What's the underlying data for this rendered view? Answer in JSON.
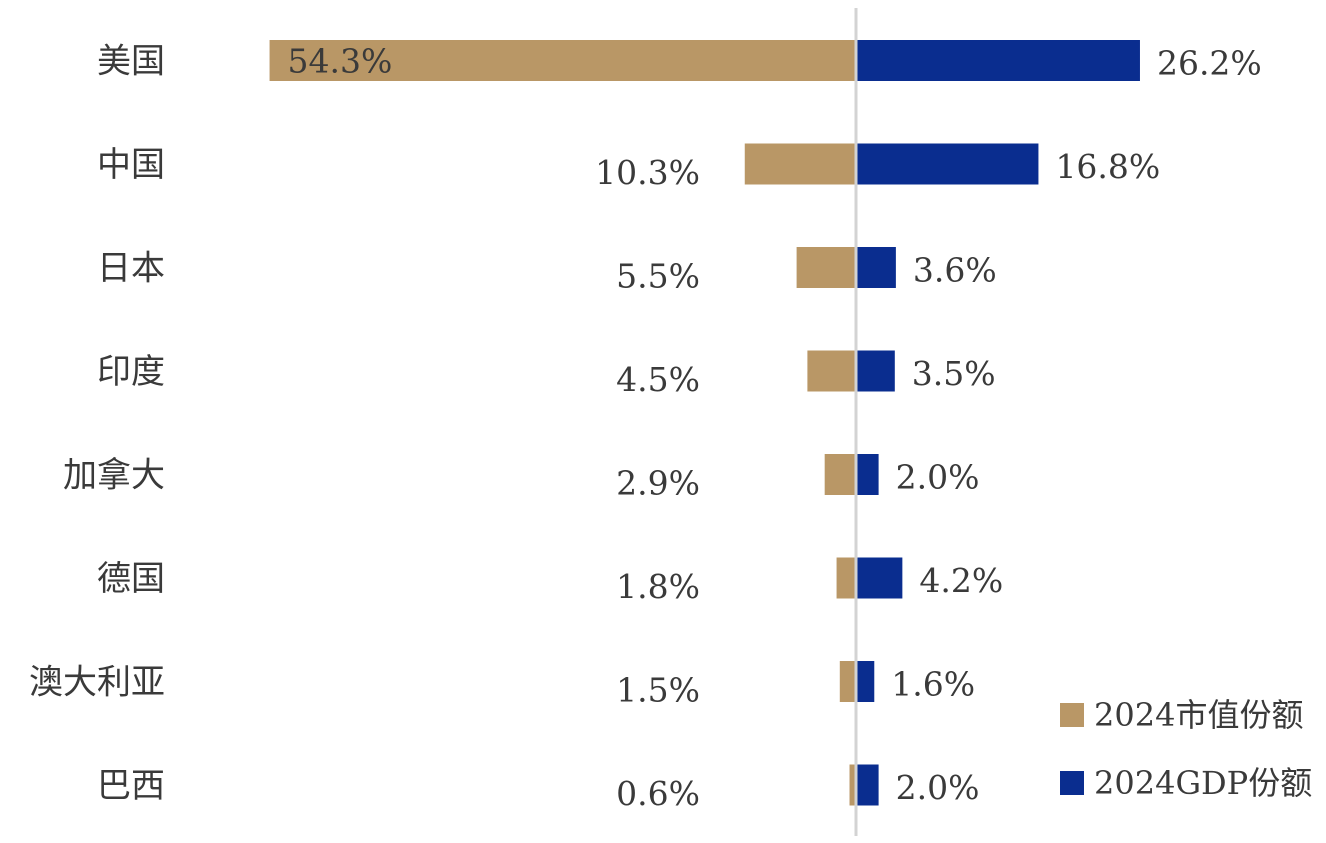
{
  "colors": {
    "market_cap": "#b99766",
    "gdp": "#0a2d8f",
    "axis": "#d3d3d3",
    "text": "#3a3a3a"
  },
  "legend": {
    "market_cap": "2024市值份额",
    "gdp": "2024GDP份额"
  },
  "chart_data": {
    "type": "bar",
    "orientation": "horizontal-diverging",
    "categories": [
      "美国",
      "中国",
      "日本",
      "印度",
      "加拿大",
      "德国",
      "澳大利亚",
      "巴西"
    ],
    "series": [
      {
        "name": "2024市值份额",
        "values": [
          54.3,
          10.3,
          5.5,
          4.5,
          2.9,
          1.8,
          1.5,
          0.6
        ]
      },
      {
        "name": "2024GDP份额",
        "values": [
          26.2,
          16.8,
          3.6,
          3.5,
          2.0,
          4.2,
          1.6,
          2.0
        ]
      }
    ],
    "value_labels": {
      "market_cap": [
        "54.3%",
        "10.3%",
        "5.5%",
        "4.5%",
        "2.9%",
        "1.8%",
        "1.5%",
        "0.6%"
      ],
      "gdp": [
        "26.2%",
        "16.8%",
        "3.6%",
        "3.5%",
        "2.0%",
        "4.2%",
        "1.6%",
        "2.0%"
      ]
    },
    "unit": "%",
    "legend_position": "bottom-right",
    "grid": false
  }
}
